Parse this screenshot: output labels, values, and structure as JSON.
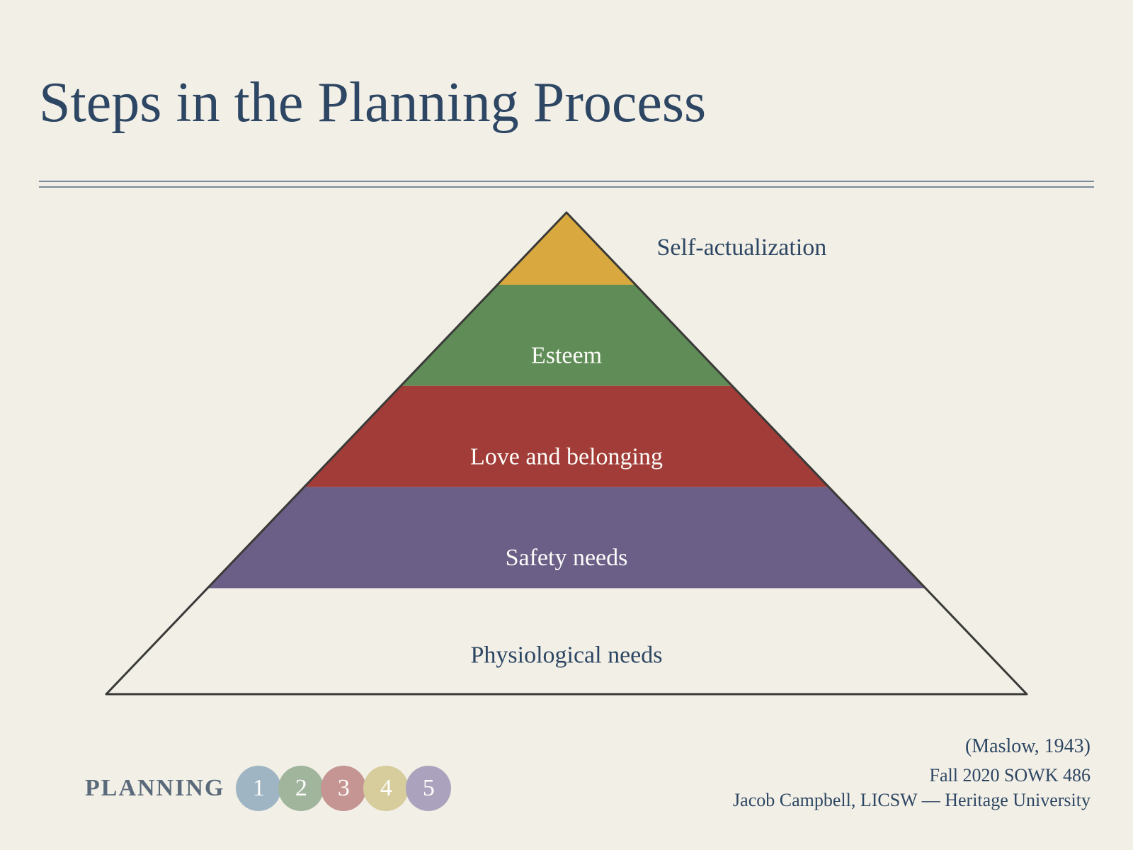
{
  "title": "Steps in the Planning Process",
  "title_color": "#2d4663",
  "title_fontsize": 80,
  "background_color": "#f2efe6",
  "rule_color": "#7c8a9e",
  "pyramid": {
    "type": "pyramid",
    "outline_color": "#3a3a38",
    "outline_width": 3,
    "levels": [
      {
        "label": "Self-actualization",
        "color": "#d9a93f",
        "label_outside": true,
        "label_color": "#2d4663",
        "text_fontsize": 34
      },
      {
        "label": "Esteem",
        "color": "#5f8c57",
        "label_outside": false,
        "label_color": "#fdfdfa",
        "text_fontsize": 34
      },
      {
        "label": "Love and belonging",
        "color": "#a23c38",
        "label_outside": false,
        "label_color": "#fdfdfa",
        "text_fontsize": 34
      },
      {
        "label": "Safety needs",
        "color": "#6b5f87",
        "label_outside": false,
        "label_color": "#fdfdfa",
        "text_fontsize": 34
      },
      {
        "label": "Physiological needs",
        "color": "transparent",
        "label_outside": false,
        "label_color": "#2d4663",
        "text_fontsize": 34
      }
    ],
    "height_fractions": [
      0.15,
      0.21,
      0.21,
      0.21,
      0.22
    ]
  },
  "citation": "(Maslow, 1943)",
  "course_term": "Fall 2020 SOWK 486",
  "attribution": "Jacob Campbell, LICSW — Heritage University",
  "footer": {
    "label": "PLANNING",
    "label_color": "#5a6a7a",
    "label_fontsize": 34,
    "steps": [
      {
        "num": "1",
        "color": "#9fb5c4"
      },
      {
        "num": "2",
        "color": "#a0b59c"
      },
      {
        "num": "3",
        "color": "#c49592"
      },
      {
        "num": "4",
        "color": "#d6cc9c"
      },
      {
        "num": "5",
        "color": "#aba3bd"
      }
    ],
    "circle_diameter": 64,
    "circle_text_color": "#ffffff"
  }
}
